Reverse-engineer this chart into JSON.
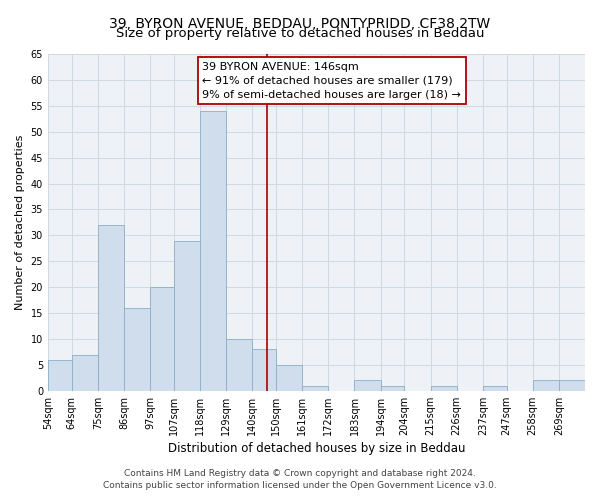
{
  "title": "39, BYRON AVENUE, BEDDAU, PONTYPRIDD, CF38 2TW",
  "subtitle": "Size of property relative to detached houses in Beddau",
  "xlabel": "Distribution of detached houses by size in Beddau",
  "ylabel": "Number of detached properties",
  "bin_labels": [
    "54sqm",
    "64sqm",
    "75sqm",
    "86sqm",
    "97sqm",
    "107sqm",
    "118sqm",
    "129sqm",
    "140sqm",
    "150sqm",
    "161sqm",
    "172sqm",
    "183sqm",
    "194sqm",
    "204sqm",
    "215sqm",
    "226sqm",
    "237sqm",
    "247sqm",
    "258sqm",
    "269sqm"
  ],
  "bin_edges": [
    54,
    64,
    75,
    86,
    97,
    107,
    118,
    129,
    140,
    150,
    161,
    172,
    183,
    194,
    204,
    215,
    226,
    237,
    247,
    258,
    269
  ],
  "counts": [
    6,
    7,
    32,
    16,
    20,
    29,
    54,
    10,
    8,
    5,
    1,
    0,
    2,
    1,
    0,
    1,
    0,
    1,
    0,
    2,
    2
  ],
  "bar_color": "#cfdded",
  "bar_edge_color": "#8aaec8",
  "property_line_x": 146,
  "property_line_color": "#aa0000",
  "annotation_line1": "39 BYRON AVENUE: 146sqm",
  "annotation_line2": "← 91% of detached houses are smaller (179)",
  "annotation_line3": "9% of semi-detached houses are larger (18) →",
  "annotation_box_color": "#ffffff",
  "annotation_box_edge_color": "#aa0000",
  "ylim": [
    0,
    65
  ],
  "yticks": [
    0,
    5,
    10,
    15,
    20,
    25,
    30,
    35,
    40,
    45,
    50,
    55,
    60,
    65
  ],
  "grid_color": "#d0d8e0",
  "footer_line1": "Contains HM Land Registry data © Crown copyright and database right 2024.",
  "footer_line2": "Contains public sector information licensed under the Open Government Licence v3.0.",
  "bg_color": "#eef2f7",
  "title_fontsize": 10,
  "xlabel_fontsize": 8.5,
  "ylabel_fontsize": 8,
  "tick_fontsize": 7,
  "footer_fontsize": 6.5,
  "annotation_fontsize": 8
}
